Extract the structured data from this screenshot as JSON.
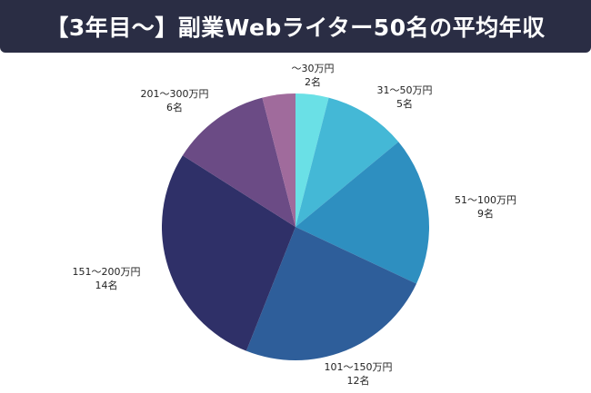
{
  "title": "【3年目〜】副業Webライター50名の平均年収",
  "colors": {
    "title_bg": "#2a2d44",
    "title_text": "#ffffff"
  },
  "chart_data": {
    "type": "pie",
    "title": "【3年目〜】副業Webライター50名の平均年収",
    "start_angle": "top (12 o'clock), clockwise",
    "categories": [
      "〜30万円",
      "31〜50万円",
      "51〜100万円",
      "101〜150万円",
      "151〜200万円",
      "201〜300万円",
      "(unlabeled)"
    ],
    "values": [
      2,
      5,
      9,
      12,
      14,
      6,
      2
    ],
    "value_unit": "名",
    "colors": [
      "#6ae0e6",
      "#44b8d6",
      "#2e8fc0",
      "#2e5e9a",
      "#2f3068",
      "#6b4b85",
      "#a06b9c"
    ],
    "legend": "none (direct labels)"
  },
  "labels": [
    {
      "range": "〜30万円",
      "count": "2名"
    },
    {
      "range": "31〜50万円",
      "count": "5名"
    },
    {
      "range": "51〜100万円",
      "count": "9名"
    },
    {
      "range": "101〜150万円",
      "count": "12名"
    },
    {
      "range": "151〜200万円",
      "count": "14名"
    },
    {
      "range": "201〜300万円",
      "count": "6名"
    }
  ]
}
